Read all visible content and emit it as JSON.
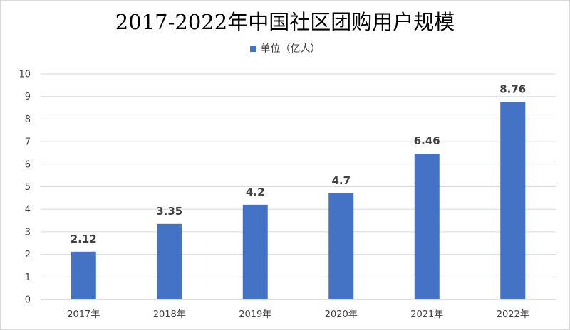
{
  "chart_data": {
    "type": "bar",
    "title": "2017-2022年中国社区团购用户规模",
    "categories": [
      "2017年",
      "2018年",
      "2019年",
      "2020年",
      "2021年",
      "2022年"
    ],
    "series": [
      {
        "name": "单位（亿人）",
        "values": [
          2.12,
          3.35,
          4.2,
          4.7,
          6.46,
          8.76
        ]
      }
    ],
    "data_labels": [
      "2.12",
      "3.35",
      "4.2",
      "4.7",
      "6.46",
      "8.76"
    ],
    "ylim": [
      0,
      10
    ],
    "yticks": [
      "0",
      "1",
      "2",
      "3",
      "4",
      "5",
      "6",
      "7",
      "8",
      "9",
      "10"
    ],
    "xlabel": "",
    "ylabel": "",
    "grid": true,
    "legend_position": "top",
    "bar_color": "#4472C4",
    "grid_color": "#d9d9d9"
  }
}
